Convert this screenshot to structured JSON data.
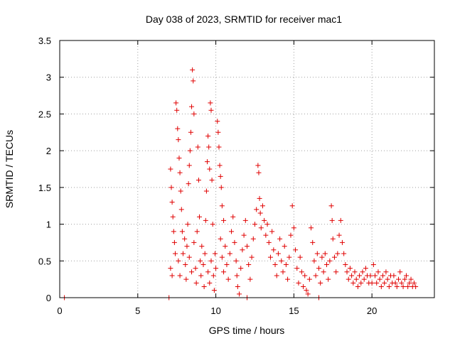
{
  "chart_data": {
    "type": "scatter",
    "title": "Day 038 of 2023, SRMTID for receiver mac1",
    "xlabel": "GPS time / hours",
    "ylabel": "SRMTID / TECUs",
    "xlim": [
      0,
      24
    ],
    "ylim": [
      0,
      3.5
    ],
    "x_ticks": [
      0,
      5,
      10,
      15,
      20
    ],
    "x_tick_labels": [
      "0",
      "5",
      "10",
      "15",
      "20"
    ],
    "y_ticks": [
      0,
      0.5,
      1,
      1.5,
      2,
      2.5,
      3,
      3.5
    ],
    "y_tick_labels": [
      "0",
      "0.5",
      "1",
      "1.5",
      "2",
      "2.5",
      "3",
      "3.5"
    ],
    "grid": true,
    "marker": "plus",
    "color": "#e00000",
    "series": [
      {
        "name": "mac1",
        "points": [
          [
            0.3,
            0.0
          ],
          [
            7.0,
            0.0
          ],
          [
            12.0,
            0.0
          ],
          [
            16.6,
            0.0
          ],
          [
            7.1,
            1.75
          ],
          [
            7.15,
            1.5
          ],
          [
            7.2,
            1.3
          ],
          [
            7.25,
            1.1
          ],
          [
            7.3,
            0.9
          ],
          [
            7.35,
            0.75
          ],
          [
            7.4,
            0.6
          ],
          [
            7.1,
            0.4
          ],
          [
            7.2,
            0.3
          ],
          [
            7.45,
            2.65
          ],
          [
            7.5,
            2.55
          ],
          [
            7.55,
            2.3
          ],
          [
            7.6,
            2.15
          ],
          [
            7.65,
            1.9
          ],
          [
            7.7,
            1.7
          ],
          [
            7.75,
            1.45
          ],
          [
            7.8,
            1.2
          ],
          [
            7.6,
            0.5
          ],
          [
            7.7,
            0.3
          ],
          [
            7.85,
            0.9
          ],
          [
            7.9,
            0.6
          ],
          [
            8.0,
            0.8
          ],
          [
            8.05,
            0.45
          ],
          [
            8.1,
            0.25
          ],
          [
            8.15,
            0.7
          ],
          [
            8.2,
            1.0
          ],
          [
            8.25,
            1.55
          ],
          [
            8.3,
            1.8
          ],
          [
            8.35,
            2.0
          ],
          [
            8.4,
            2.25
          ],
          [
            8.45,
            2.6
          ],
          [
            8.5,
            3.1
          ],
          [
            8.55,
            2.95
          ],
          [
            8.6,
            2.5
          ],
          [
            8.3,
            0.55
          ],
          [
            8.45,
            0.35
          ],
          [
            8.6,
            0.75
          ],
          [
            8.7,
            0.4
          ],
          [
            8.75,
            0.2
          ],
          [
            8.8,
            0.9
          ],
          [
            8.85,
            2.05
          ],
          [
            8.9,
            1.6
          ],
          [
            8.95,
            1.1
          ],
          [
            9.0,
            0.5
          ],
          [
            9.05,
            0.3
          ],
          [
            9.1,
            0.7
          ],
          [
            9.2,
            0.45
          ],
          [
            9.25,
            0.15
          ],
          [
            9.3,
            0.6
          ],
          [
            9.35,
            1.05
          ],
          [
            9.4,
            1.45
          ],
          [
            9.45,
            1.85
          ],
          [
            9.5,
            2.2
          ],
          [
            9.55,
            2.05
          ],
          [
            9.6,
            1.75
          ],
          [
            9.65,
            2.65
          ],
          [
            9.7,
            2.55
          ],
          [
            9.75,
            1.6
          ],
          [
            9.8,
            1.0
          ],
          [
            9.5,
            0.35
          ],
          [
            9.6,
            0.2
          ],
          [
            9.7,
            0.5
          ],
          [
            9.85,
            0.3
          ],
          [
            9.9,
            0.1
          ],
          [
            9.95,
            0.6
          ],
          [
            10.0,
            0.4
          ],
          [
            10.1,
            2.4
          ],
          [
            10.15,
            2.25
          ],
          [
            10.2,
            2.05
          ],
          [
            10.25,
            1.8
          ],
          [
            10.3,
            1.65
          ],
          [
            10.35,
            1.5
          ],
          [
            10.4,
            1.25
          ],
          [
            10.5,
            1.05
          ],
          [
            10.3,
            0.8
          ],
          [
            10.4,
            0.55
          ],
          [
            10.5,
            0.35
          ],
          [
            10.6,
            0.7
          ],
          [
            10.7,
            0.45
          ],
          [
            10.8,
            0.25
          ],
          [
            10.9,
            0.6
          ],
          [
            11.0,
            0.9
          ],
          [
            11.1,
            1.1
          ],
          [
            11.2,
            0.75
          ],
          [
            11.3,
            0.5
          ],
          [
            11.35,
            0.3
          ],
          [
            11.4,
            0.15
          ],
          [
            11.5,
            0.05
          ],
          [
            11.6,
            0.4
          ],
          [
            11.7,
            0.65
          ],
          [
            11.8,
            0.85
          ],
          [
            11.9,
            1.05
          ],
          [
            12.0,
            0.7
          ],
          [
            12.1,
            0.45
          ],
          [
            12.2,
            0.25
          ],
          [
            12.3,
            0.55
          ],
          [
            12.4,
            0.8
          ],
          [
            12.5,
            1.0
          ],
          [
            12.6,
            1.2
          ],
          [
            12.7,
            1.8
          ],
          [
            12.75,
            1.7
          ],
          [
            12.8,
            1.35
          ],
          [
            12.85,
            1.15
          ],
          [
            12.9,
            0.95
          ],
          [
            13.0,
            1.25
          ],
          [
            13.1,
            1.05
          ],
          [
            13.2,
            0.85
          ],
          [
            13.3,
            1.0
          ],
          [
            13.4,
            0.75
          ],
          [
            13.5,
            0.55
          ],
          [
            13.6,
            0.9
          ],
          [
            13.7,
            0.65
          ],
          [
            13.8,
            0.45
          ],
          [
            13.9,
            0.3
          ],
          [
            14.0,
            0.6
          ],
          [
            14.1,
            0.8
          ],
          [
            14.2,
            0.5
          ],
          [
            14.3,
            0.35
          ],
          [
            14.4,
            0.7
          ],
          [
            14.5,
            0.45
          ],
          [
            14.6,
            0.25
          ],
          [
            14.7,
            0.55
          ],
          [
            14.8,
            0.85
          ],
          [
            14.9,
            1.25
          ],
          [
            15.0,
            0.95
          ],
          [
            15.1,
            0.65
          ],
          [
            15.2,
            0.4
          ],
          [
            15.3,
            0.2
          ],
          [
            15.4,
            0.55
          ],
          [
            15.5,
            0.35
          ],
          [
            15.6,
            0.15
          ],
          [
            15.7,
            0.3
          ],
          [
            15.8,
            0.1
          ],
          [
            15.9,
            0.05
          ],
          [
            16.0,
            0.25
          ],
          [
            16.1,
            0.95
          ],
          [
            16.2,
            0.75
          ],
          [
            16.3,
            0.5
          ],
          [
            16.4,
            0.3
          ],
          [
            16.5,
            0.6
          ],
          [
            16.6,
            0.4
          ],
          [
            16.7,
            0.2
          ],
          [
            16.8,
            0.55
          ],
          [
            16.9,
            0.35
          ],
          [
            17.0,
            0.6
          ],
          [
            17.1,
            0.45
          ],
          [
            17.2,
            0.25
          ],
          [
            17.3,
            0.5
          ],
          [
            17.4,
            1.25
          ],
          [
            17.45,
            1.05
          ],
          [
            17.5,
            0.8
          ],
          [
            17.6,
            0.55
          ],
          [
            17.7,
            0.35
          ],
          [
            17.8,
            0.6
          ],
          [
            17.9,
            0.85
          ],
          [
            18.0,
            1.05
          ],
          [
            18.1,
            0.75
          ],
          [
            18.2,
            0.6
          ],
          [
            18.3,
            0.45
          ],
          [
            18.4,
            0.35
          ],
          [
            18.5,
            0.25
          ],
          [
            18.6,
            0.4
          ],
          [
            18.7,
            0.3
          ],
          [
            18.8,
            0.2
          ],
          [
            18.9,
            0.35
          ],
          [
            19.0,
            0.25
          ],
          [
            19.1,
            0.15
          ],
          [
            19.2,
            0.3
          ],
          [
            19.3,
            0.2
          ],
          [
            19.4,
            0.35
          ],
          [
            19.5,
            0.25
          ],
          [
            19.6,
            0.4
          ],
          [
            19.7,
            0.3
          ],
          [
            19.8,
            0.2
          ],
          [
            19.9,
            0.3
          ],
          [
            20.0,
            0.2
          ],
          [
            20.1,
            0.45
          ],
          [
            20.2,
            0.3
          ],
          [
            20.3,
            0.2
          ],
          [
            20.4,
            0.35
          ],
          [
            20.5,
            0.25
          ],
          [
            20.6,
            0.15
          ],
          [
            20.7,
            0.3
          ],
          [
            20.8,
            0.2
          ],
          [
            20.9,
            0.35
          ],
          [
            21.0,
            0.25
          ],
          [
            21.1,
            0.15
          ],
          [
            21.2,
            0.3
          ],
          [
            21.3,
            0.2
          ],
          [
            21.4,
            0.3
          ],
          [
            21.5,
            0.2
          ],
          [
            21.6,
            0.15
          ],
          [
            21.7,
            0.25
          ],
          [
            21.8,
            0.35
          ],
          [
            21.9,
            0.2
          ],
          [
            22.0,
            0.15
          ],
          [
            22.1,
            0.25
          ],
          [
            22.2,
            0.3
          ],
          [
            22.3,
            0.15
          ],
          [
            22.4,
            0.2
          ],
          [
            22.5,
            0.25
          ],
          [
            22.6,
            0.15
          ],
          [
            22.7,
            0.2
          ],
          [
            22.8,
            0.15
          ]
        ]
      }
    ]
  }
}
